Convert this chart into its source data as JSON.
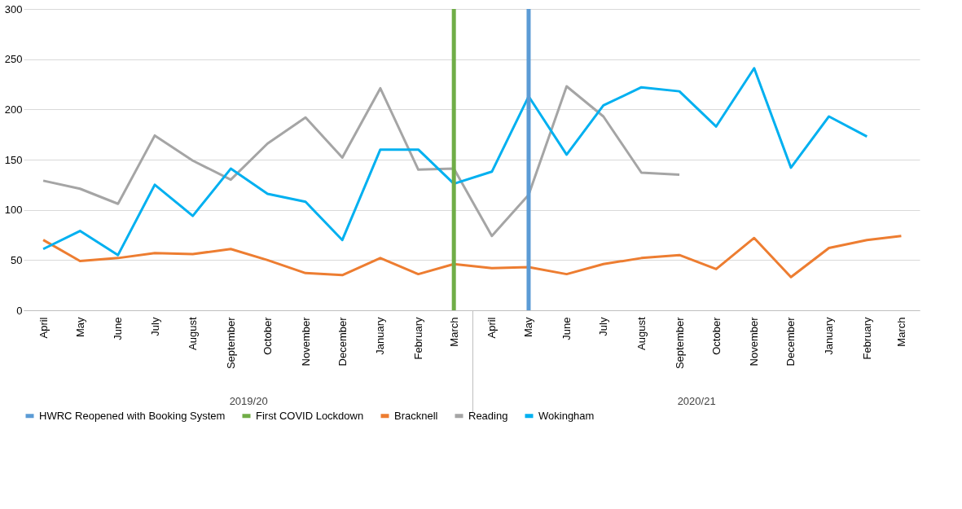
{
  "chart_data": {
    "type": "line",
    "x": [
      "2019-04",
      "2019-05",
      "2019-06",
      "2019-07",
      "2019-08",
      "2019-09",
      "2019-10",
      "2019-11",
      "2019-12",
      "2020-01",
      "2020-02",
      "2020-03",
      "2020-04",
      "2020-05",
      "2020-06",
      "2020-07",
      "2020-08",
      "2020-09",
      "2020-10",
      "2020-11",
      "2020-12",
      "2021-01",
      "2021-02",
      "2021-03"
    ],
    "xticks": [
      {
        "value": "2019-04",
        "label": "April"
      },
      {
        "value": "2019-05",
        "label": "May"
      },
      {
        "value": "2019-06",
        "label": "June"
      },
      {
        "value": "2019-07",
        "label": "July"
      },
      {
        "value": "2019-08",
        "label": "August"
      },
      {
        "value": "2019-09",
        "label": "September"
      },
      {
        "value": "2019-10",
        "label": "October"
      },
      {
        "value": "2019-11",
        "label": "November"
      },
      {
        "value": "2019-12",
        "label": "December"
      },
      {
        "value": "2020-01",
        "label": "January"
      },
      {
        "value": "2020-02",
        "label": "February"
      },
      {
        "value": "2020-03",
        "label": "March"
      },
      {
        "value": "2020-04",
        "label": "April"
      },
      {
        "value": "2020-05",
        "label": "May"
      },
      {
        "value": "2020-06",
        "label": "June"
      },
      {
        "value": "2020-07",
        "label": "July"
      },
      {
        "value": "2020-08",
        "label": "August"
      },
      {
        "value": "2020-09",
        "label": "September"
      },
      {
        "value": "2020-10",
        "label": "October"
      },
      {
        "value": "2020-11",
        "label": "November"
      },
      {
        "value": "2020-12",
        "label": "December"
      },
      {
        "value": "2021-01",
        "label": "January"
      },
      {
        "value": "2021-02",
        "label": "February"
      },
      {
        "value": "2021-03",
        "label": "March"
      }
    ],
    "series": [
      {
        "name": "Bracknell",
        "color": "#ed7d31",
        "values": [
          70,
          49,
          52,
          57,
          56,
          61,
          50,
          37,
          35,
          52,
          36,
          46,
          42,
          43,
          36,
          46,
          52,
          55,
          41,
          72,
          33,
          62,
          70,
          74
        ]
      },
      {
        "name": "Reading",
        "color": "#a5a5a5",
        "values": [
          129,
          121,
          106,
          174,
          149,
          130,
          166,
          192,
          152,
          221,
          140,
          141,
          74,
          115,
          223,
          193,
          137,
          135,
          null,
          null,
          null,
          null,
          null,
          null
        ]
      },
      {
        "name": "Wokingham",
        "color": "#00b0f0",
        "values": [
          61,
          79,
          55,
          125,
          94,
          141,
          116,
          108,
          70,
          160,
          160,
          126,
          138,
          213,
          155,
          204,
          222,
          218,
          183,
          241,
          142,
          193,
          173,
          null
        ]
      }
    ],
    "ref_lines": [
      {
        "axis": "x",
        "value": "2020-05",
        "label": "HWRC Reopened with Booking System",
        "color": "#5b9bd5"
      },
      {
        "axis": "x",
        "value": "2020-03",
        "label": "First COVID Lockdown",
        "color": "#70ad47"
      }
    ],
    "annotations": [
      "2019/20",
      "2020/21"
    ],
    "xlim": [
      "2019-03-16",
      "2021-03-16"
    ],
    "ylim": [
      0,
      300
    ],
    "yticks": [
      0,
      50,
      100,
      150,
      200,
      250,
      300
    ],
    "grid": "y",
    "legend": "bottom",
    "marker": "none",
    "line_style": "solid"
  }
}
